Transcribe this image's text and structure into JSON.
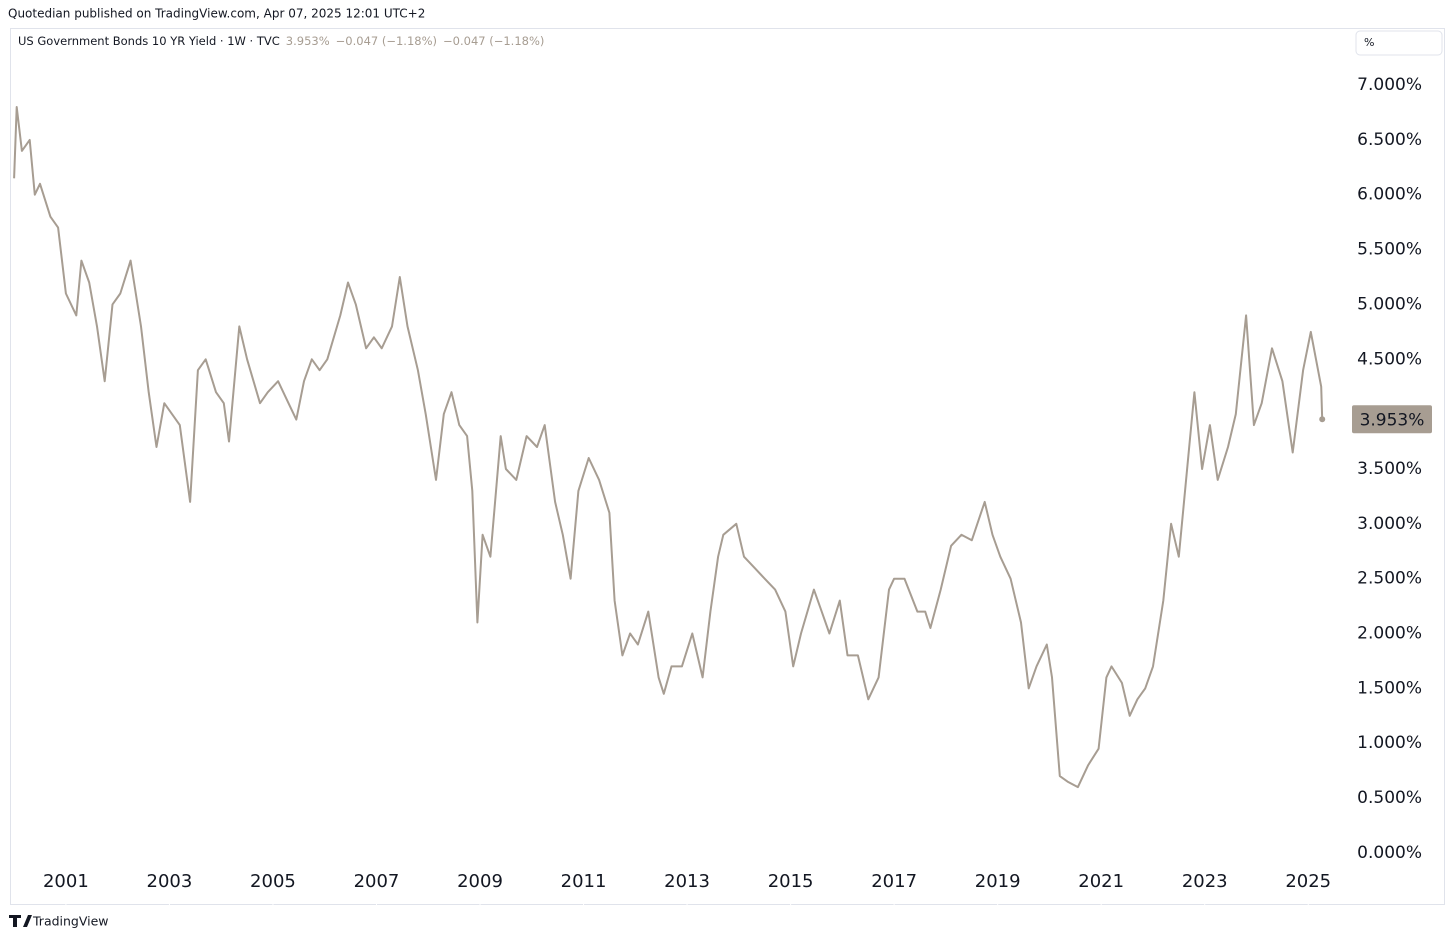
{
  "header": "Quotedian published on TradingView.com, Apr 07, 2025 12:01 UTC+2",
  "footer": "TradingView",
  "chart_data": {
    "type": "line",
    "series": [
      {
        "name": "US Government Bonds 10 YR Yield · 1W · TVC",
        "color": "#a79d92",
        "values": [
          6.15,
          6.8,
          6.4,
          6.5,
          6.0,
          6.1,
          5.8,
          5.7,
          5.1,
          4.9,
          5.4,
          5.2,
          4.8,
          4.3,
          5.0,
          5.1,
          5.4,
          4.8,
          4.2,
          3.7,
          4.1,
          4.0,
          3.9,
          3.2,
          4.4,
          4.5,
          4.2,
          4.1,
          3.75,
          4.8,
          4.5,
          4.1,
          4.2,
          4.3,
          4.1,
          3.95,
          4.3,
          4.5,
          4.4,
          4.5,
          4.9,
          5.2,
          5.0,
          4.6,
          4.7,
          4.6,
          4.8,
          5.25,
          4.8,
          4.4,
          4.0,
          3.4,
          4.0,
          4.2,
          3.9,
          3.8,
          3.3,
          2.1,
          2.9,
          2.7,
          3.8,
          3.5,
          3.4,
          3.8,
          3.7,
          3.9,
          3.2,
          2.9,
          2.5,
          3.3,
          3.6,
          3.4,
          3.1,
          2.3,
          1.8,
          2.0,
          1.9,
          2.2,
          1.6,
          1.45,
          1.7,
          1.7,
          2.0,
          1.6,
          2.2,
          2.7,
          2.9,
          3.0,
          2.7,
          2.6,
          2.5,
          2.4,
          2.2,
          1.7,
          2.0,
          2.4,
          2.2,
          2.0,
          2.3,
          1.8,
          1.8,
          1.4,
          1.6,
          2.4,
          2.5,
          2.5,
          2.2,
          2.2,
          2.05,
          2.4,
          2.8,
          2.9,
          2.85,
          3.2,
          2.9,
          2.7,
          2.5,
          2.1,
          1.5,
          1.7,
          1.9,
          1.6,
          0.7,
          0.65,
          0.6,
          0.8,
          0.95,
          1.6,
          1.7,
          1.55,
          1.25,
          1.4,
          1.5,
          1.7,
          2.3,
          3.0,
          2.7,
          3.2,
          4.2,
          3.5,
          3.9,
          3.4,
          3.7,
          4.0,
          4.9,
          3.9,
          4.1,
          4.6,
          4.3,
          3.65,
          4.4,
          4.75,
          4.5,
          4.25,
          3.953
        ]
      }
    ],
    "x": [
      2000.0,
      2000.05,
      2000.15,
      2000.3,
      2000.4,
      2000.5,
      2000.7,
      2000.85,
      2001.0,
      2001.2,
      2001.3,
      2001.45,
      2001.6,
      2001.75,
      2001.9,
      2002.05,
      2002.25,
      2002.45,
      2002.6,
      2002.75,
      2002.9,
      2003.05,
      2003.2,
      2003.4,
      2003.55,
      2003.7,
      2003.9,
      2004.05,
      2004.15,
      2004.35,
      2004.5,
      2004.75,
      2004.9,
      2005.1,
      2005.3,
      2005.45,
      2005.6,
      2005.75,
      2005.9,
      2006.05,
      2006.3,
      2006.45,
      2006.6,
      2006.8,
      2006.95,
      2007.1,
      2007.3,
      2007.45,
      2007.6,
      2007.8,
      2007.95,
      2008.15,
      2008.3,
      2008.45,
      2008.6,
      2008.75,
      2008.85,
      2008.95,
      2009.05,
      2009.2,
      2009.4,
      2009.5,
      2009.7,
      2009.9,
      2010.1,
      2010.25,
      2010.45,
      2010.6,
      2010.75,
      2010.9,
      2011.1,
      2011.3,
      2011.5,
      2011.6,
      2011.75,
      2011.9,
      2012.05,
      2012.25,
      2012.45,
      2012.55,
      2012.7,
      2012.9,
      2013.1,
      2013.3,
      2013.45,
      2013.6,
      2013.7,
      2013.95,
      2014.1,
      2014.3,
      2014.5,
      2014.7,
      2014.9,
      2015.05,
      2015.2,
      2015.45,
      2015.6,
      2015.75,
      2015.95,
      2016.1,
      2016.3,
      2016.5,
      2016.7,
      2016.9,
      2017.0,
      2017.2,
      2017.45,
      2017.6,
      2017.7,
      2017.9,
      2018.1,
      2018.3,
      2018.5,
      2018.75,
      2018.9,
      2019.05,
      2019.25,
      2019.45,
      2019.6,
      2019.75,
      2019.95,
      2020.05,
      2020.2,
      2020.35,
      2020.55,
      2020.75,
      2020.95,
      2021.1,
      2021.2,
      2021.4,
      2021.55,
      2021.7,
      2021.85,
      2022.0,
      2022.2,
      2022.35,
      2022.5,
      2022.6,
      2022.8,
      2022.95,
      2023.1,
      2023.25,
      2023.45,
      2023.6,
      2023.8,
      2023.95,
      2024.1,
      2024.3,
      2024.5,
      2024.7,
      2024.9,
      2025.05,
      2025.15,
      2025.25,
      2025.27
    ],
    "xlim": [
      1999.92,
      2025.71
    ],
    "xticks": [
      2001,
      2003,
      2005,
      2007,
      2009,
      2011,
      2013,
      2015,
      2017,
      2019,
      2021,
      2023,
      2025
    ],
    "ylim": [
      -0.475,
      7.52
    ],
    "yticks": [
      {
        "value": 0,
        "label": "0.000%"
      },
      {
        "value": 0.5,
        "label": "0.500%"
      },
      {
        "value": 1,
        "label": "1.000%"
      },
      {
        "value": 1.5,
        "label": "1.500%"
      },
      {
        "value": 2,
        "label": "2.000%"
      },
      {
        "value": 2.5,
        "label": "2.500%"
      },
      {
        "value": 3,
        "label": "3.000%"
      },
      {
        "value": 3.5,
        "label": "3.500%"
      },
      {
        "value": 4,
        "label": "4.000%"
      },
      {
        "value": 4.5,
        "label": "4.500%"
      },
      {
        "value": 5,
        "label": "5.000%"
      },
      {
        "value": 5.5,
        "label": "5.500%"
      },
      {
        "value": 6,
        "label": "6.000%"
      },
      {
        "value": 6.5,
        "label": "6.500%"
      },
      {
        "value": 7,
        "label": "7.000%"
      }
    ],
    "legend_values": [
      "3.953%",
      "−0.047 (−1.18%)",
      "−0.047 (−1.18%)"
    ],
    "price_label": {
      "value": 3.953,
      "label": "3.953%"
    },
    "unit_button": "%"
  }
}
